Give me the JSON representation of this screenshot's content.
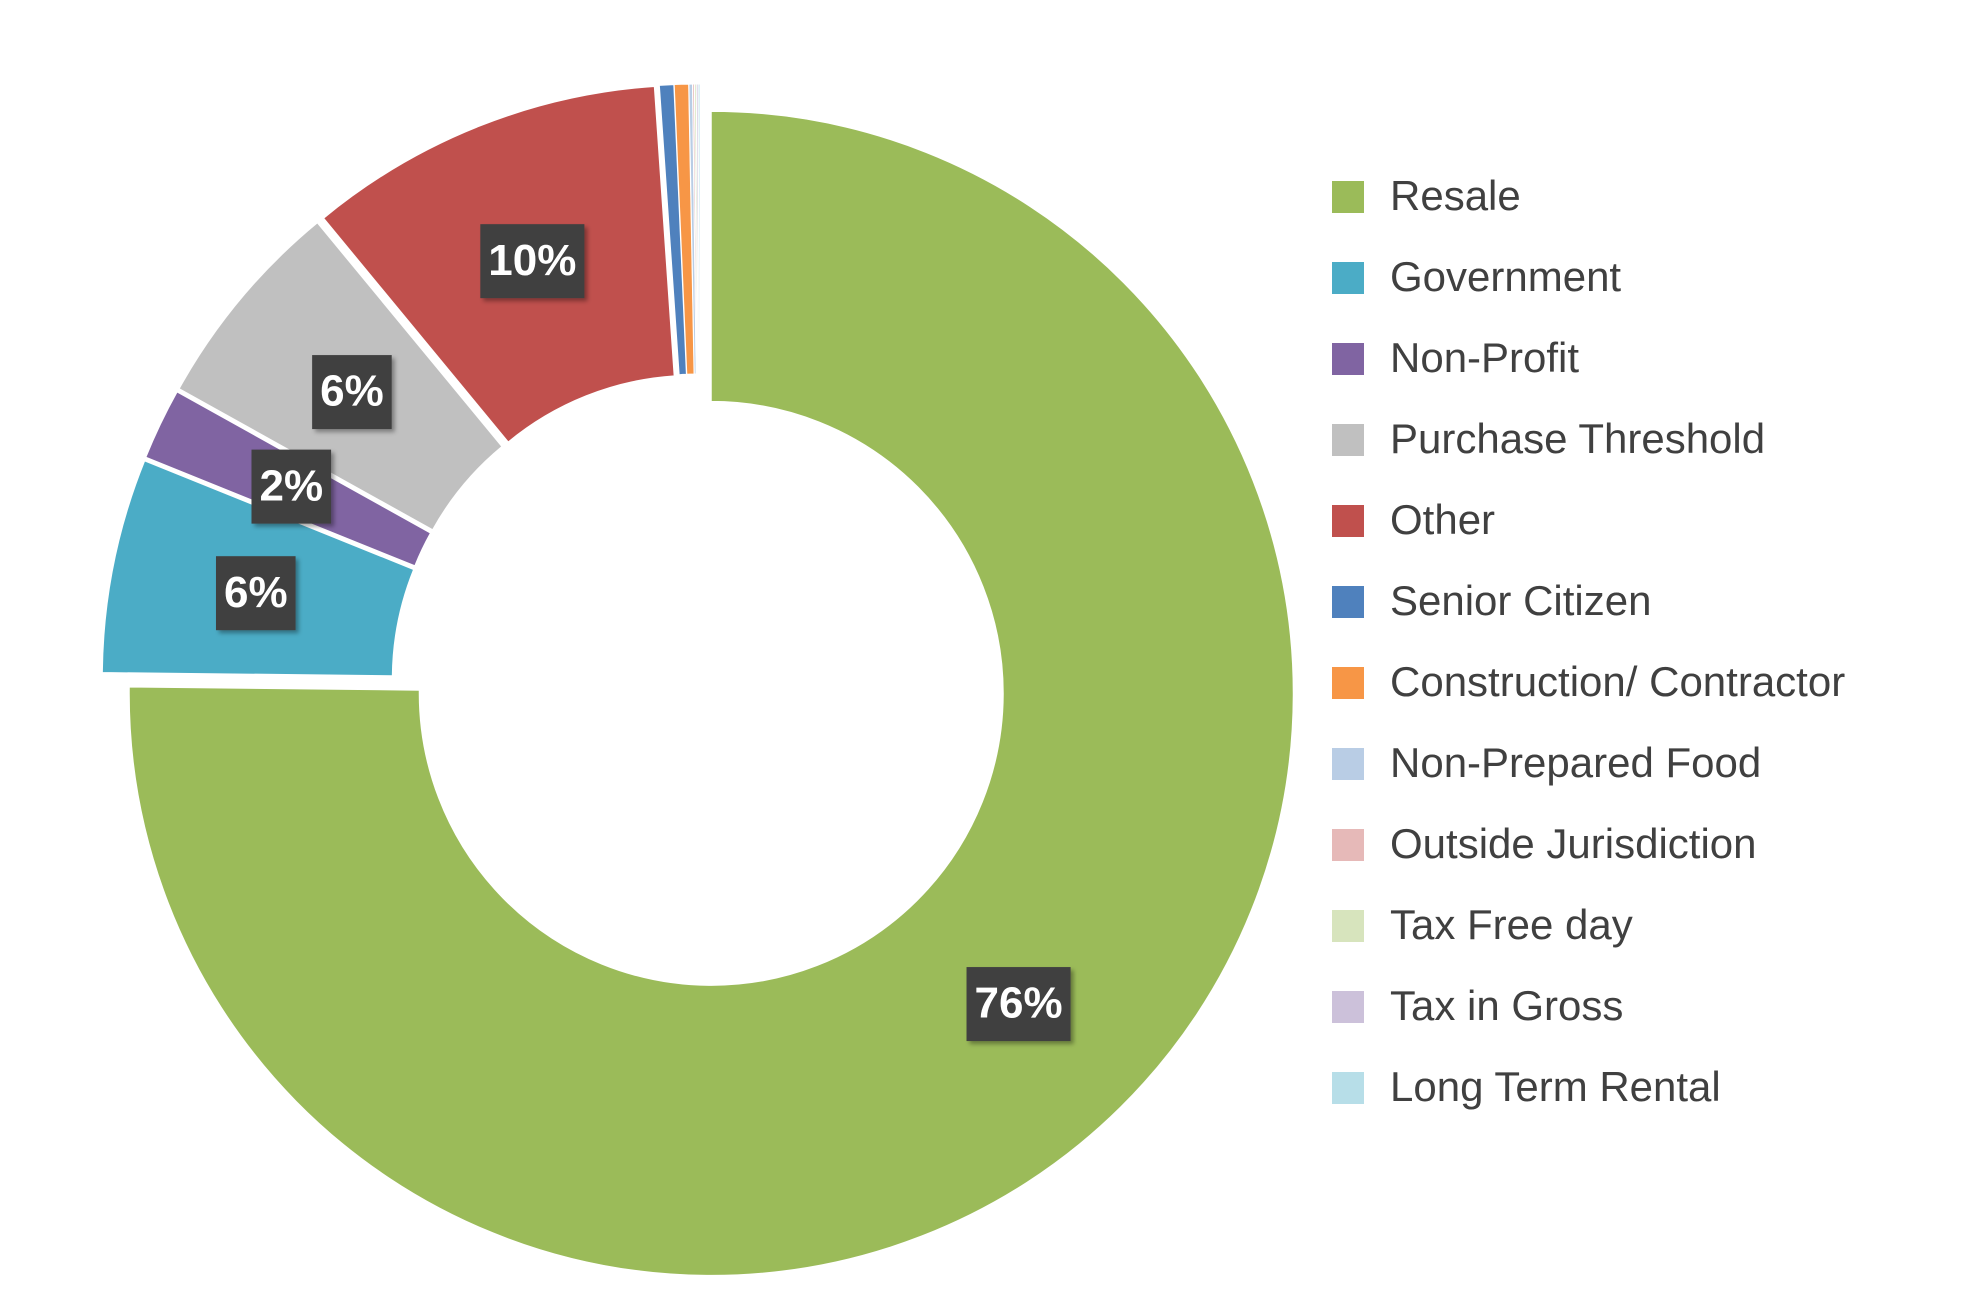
{
  "chart_data": {
    "type": "donut",
    "categories": [
      "Resale",
      "Government",
      "Non-Profit",
      "Purchase Threshold",
      "Other",
      "Senior Citizen",
      "Construction/ Contractor",
      "Non-Prepared Food",
      "Outside Jurisdiction",
      "Tax Free day",
      "Tax in Gross",
      "Long Term Rental"
    ],
    "values": [
      76,
      6,
      2,
      6,
      10,
      0.4,
      0.4,
      0.1,
      0.05,
      0.05,
      0.05,
      0.05
    ],
    "value_labels": [
      "76%",
      "6%",
      "2%",
      "6%",
      "10%",
      null,
      null,
      null,
      null,
      null,
      null,
      null
    ],
    "colors": [
      "#9bbb59",
      "#4bacc6",
      "#8064a2",
      "#c0c0c0",
      "#c0504d",
      "#4f81bd",
      "#f79646",
      "#b9cde5",
      "#e6b9b8",
      "#d7e4bd",
      "#ccc1da",
      "#b7dee8"
    ],
    "legend": "right"
  }
}
